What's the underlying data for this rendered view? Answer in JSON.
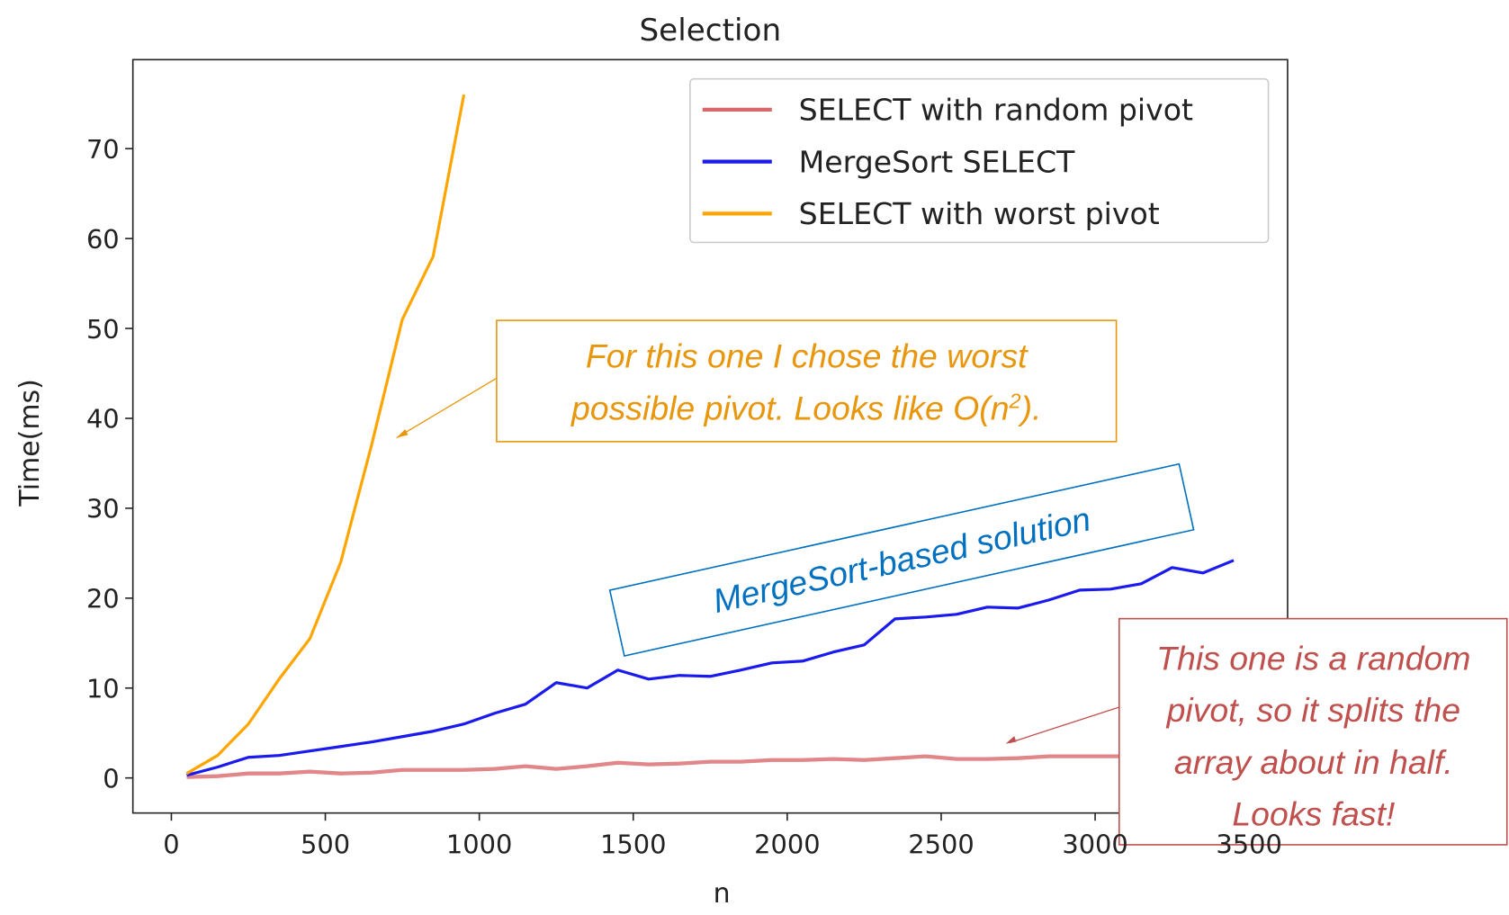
{
  "chart_data": {
    "type": "line",
    "title": "Selection",
    "x_label": "n",
    "y_label": "Time(ms)",
    "x": [
      50,
      150,
      250,
      350,
      450,
      550,
      650,
      750,
      850,
      950,
      1050,
      1150,
      1250,
      1350,
      1450,
      1550,
      1650,
      1750,
      1850,
      1950,
      2050,
      2150,
      2250,
      2350,
      2450,
      2550,
      2650,
      2750,
      2850,
      2950,
      3050,
      3150,
      3250,
      3350,
      3450
    ],
    "series": [
      {
        "name": "SELECT with random pivot",
        "color": "#d9686b",
        "values": [
          0.1,
          0.2,
          0.5,
          0.5,
          0.7,
          0.5,
          0.6,
          0.9,
          0.9,
          0.9,
          1.0,
          1.3,
          1.0,
          1.3,
          1.7,
          1.5,
          1.6,
          1.8,
          1.8,
          2.0,
          2.0,
          2.1,
          2.0,
          2.2,
          2.4,
          2.1,
          2.1,
          2.2,
          2.4,
          2.4,
          2.4,
          2.4,
          2.4,
          2.5,
          2.5
        ]
      },
      {
        "name": "MergeSort SELECT",
        "color": "#1a1aee",
        "values": [
          0.3,
          1.2,
          2.3,
          2.5,
          3.0,
          3.5,
          4.0,
          4.6,
          5.2,
          6.0,
          7.2,
          8.2,
          10.6,
          10.0,
          12.0,
          11.0,
          11.4,
          11.3,
          12.0,
          12.8,
          13.0,
          14.0,
          14.8,
          17.7,
          17.9,
          18.2,
          19.0,
          18.9,
          19.8,
          20.9,
          21.0,
          21.6,
          23.4,
          22.8,
          24.2
        ]
      },
      {
        "name": "SELECT with worst pivot",
        "color": "#ffa500",
        "values": [
          0.5,
          2.5,
          6.0,
          11.0,
          15.5,
          24.0,
          37.0,
          51.0,
          58.0,
          76.0,
          null,
          null,
          null,
          null,
          null,
          null,
          null,
          null,
          null,
          null,
          null,
          null,
          null,
          null,
          null,
          null,
          null,
          null,
          null,
          null,
          null,
          null,
          null,
          null,
          null
        ]
      }
    ],
    "xlim": [
      -125,
      3625
    ],
    "ylim": [
      -3.9,
      79.9
    ],
    "xticks": [
      0,
      500,
      1000,
      1500,
      2000,
      2500,
      3000,
      3500
    ],
    "yticks": [
      0,
      10,
      20,
      30,
      40,
      50,
      60,
      70
    ],
    "legend": "upper right",
    "annotations": [
      {
        "color": "#e8960c",
        "lines": [
          [
            "For this one I chose the worst"
          ],
          [
            "possible pivot.  Looks like O(n",
            "2",
            ")."
          ]
        ]
      },
      {
        "color": "#0070c0",
        "lines": [
          [
            "MergeSort-based solution"
          ]
        ]
      },
      {
        "color": "#c0504d",
        "lines": [
          [
            "This one is a random"
          ],
          [
            "pivot, so it splits the"
          ],
          [
            "array about in half."
          ],
          [
            "Looks fast!"
          ]
        ]
      }
    ]
  }
}
